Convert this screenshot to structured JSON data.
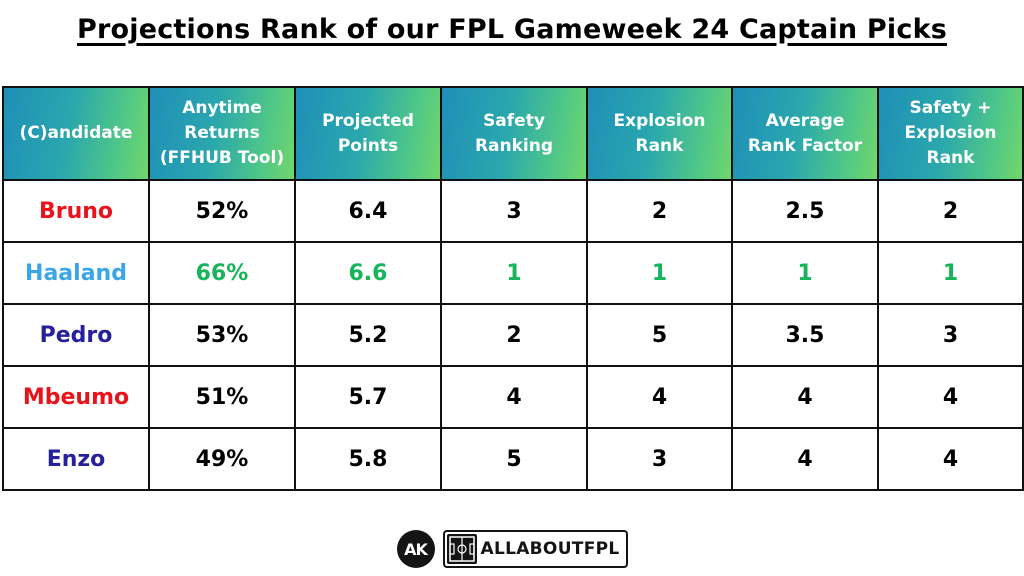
{
  "title": "Projections Rank of our FPL Gameweek 24 Captain Picks",
  "table": {
    "headers": [
      [
        "(C)andidate"
      ],
      [
        "Anytime",
        "Returns",
        "(FFHUB Tool)"
      ],
      [
        "Projected",
        "Points"
      ],
      [
        "Safety",
        "Ranking"
      ],
      [
        "Explosion",
        "Rank"
      ],
      [
        "Average",
        "Rank Factor"
      ],
      [
        "Safety +",
        "Explosion",
        "Rank"
      ]
    ],
    "rows": [
      {
        "name": "Bruno",
        "name_color": "#e8141b",
        "values_color": "#000000",
        "cells": [
          "52%",
          "6.4",
          "3",
          "2",
          "2.5",
          "2"
        ]
      },
      {
        "name": "Haaland",
        "name_color": "#3aa6e6",
        "values_color": "#16b55b",
        "cells": [
          "66%",
          "6.6",
          "1",
          "1",
          "1",
          "1"
        ]
      },
      {
        "name": "Pedro",
        "name_color": "#26219a",
        "values_color": "#000000",
        "cells": [
          "53%",
          "5.2",
          "2",
          "5",
          "3.5",
          "3"
        ]
      },
      {
        "name": "Mbeumo",
        "name_color": "#e8141b",
        "values_color": "#000000",
        "cells": [
          "51%",
          "5.7",
          "4",
          "4",
          "4",
          "4"
        ]
      },
      {
        "name": "Enzo",
        "name_color": "#26219a",
        "values_color": "#000000",
        "cells": [
          "49%",
          "5.8",
          "5",
          "3",
          "4",
          "4"
        ]
      }
    ]
  },
  "footer": {
    "circle_logo": "AK",
    "brand": "ALLABOUTFPL",
    "brand_icon": "pitch-icon"
  },
  "colors": {
    "header_gradient_start": "#1f8fb8",
    "header_gradient_end": "#72d66b",
    "highlight_green": "#16b55b"
  }
}
